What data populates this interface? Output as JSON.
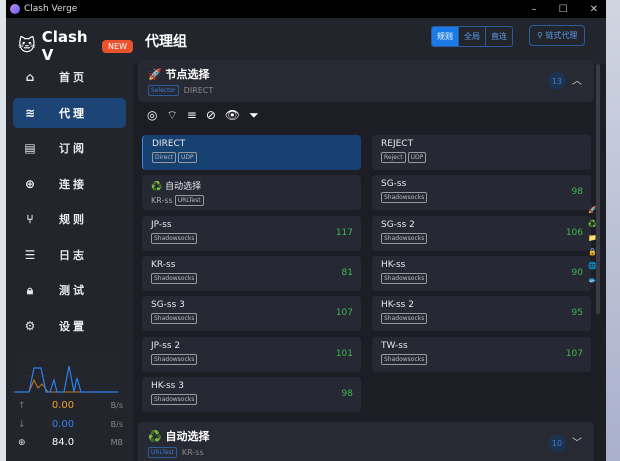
{
  "window": {
    "title": "Clash Verge"
  },
  "sidebar": {
    "app_name": "Clash V",
    "badge": "NEW",
    "items": [
      {
        "label": "首页",
        "icon": "home-icon"
      },
      {
        "label": "代理",
        "icon": "wifi-icon",
        "selected": true
      },
      {
        "label": "订阅",
        "icon": "storage-icon"
      },
      {
        "label": "连接",
        "icon": "globe-icon"
      },
      {
        "label": "规则",
        "icon": "fork-icon"
      },
      {
        "label": "日志",
        "icon": "list-icon"
      },
      {
        "label": "测试",
        "icon": "lock-icon"
      },
      {
        "label": "设置",
        "icon": "gear-icon"
      }
    ],
    "traffic": {
      "up": "0.00",
      "up_unit": "B/s",
      "down": "0.00",
      "down_unit": "B/s",
      "mem": "84.0",
      "mem_unit": "MB"
    }
  },
  "header": {
    "title": "代理组",
    "modes": [
      "规则",
      "全局",
      "直连"
    ],
    "active_mode": "规则",
    "chain": "链式代理"
  },
  "groups": [
    {
      "name": "节点选择",
      "icon": "rocket-icon",
      "type": "Selector",
      "now": "DIRECT",
      "count": "13",
      "expanded": true
    },
    {
      "name": "自动选择",
      "icon": "recycle-icon",
      "type": "URLTest",
      "now": "KR-ss",
      "count": "10",
      "expanded": false
    }
  ],
  "proxies": [
    {
      "name": "DIRECT",
      "tags": [
        "Direct",
        "UDP"
      ],
      "delay": "",
      "selected": true
    },
    {
      "name": "REJECT",
      "tags": [
        "Reject",
        "UDP"
      ],
      "delay": ""
    },
    {
      "name": "♻️ 自动选择",
      "sub": "KR-ss",
      "tags": [
        "URLTest"
      ],
      "delay": ""
    },
    {
      "name": "SG-ss",
      "tags": [
        "Shadowsocks"
      ],
      "delay": "98"
    },
    {
      "name": "JP-ss",
      "tags": [
        "Shadowsocks"
      ],
      "delay": "117"
    },
    {
      "name": "SG-ss 2",
      "tags": [
        "Shadowsocks"
      ],
      "delay": "106"
    },
    {
      "name": "KR-ss",
      "tags": [
        "Shadowsocks"
      ],
      "delay": "81"
    },
    {
      "name": "HK-ss",
      "tags": [
        "Shadowsocks"
      ],
      "delay": "90"
    },
    {
      "name": "SG-ss 3",
      "tags": [
        "Shadowsocks"
      ],
      "delay": "107"
    },
    {
      "name": "HK-ss 2",
      "tags": [
        "Shadowsocks"
      ],
      "delay": "95"
    },
    {
      "name": "JP-ss 2",
      "tags": [
        "Shadowsocks"
      ],
      "delay": "101"
    },
    {
      "name": "TW-ss",
      "tags": [
        "Shadowsocks"
      ],
      "delay": "107"
    },
    {
      "name": "HK-ss 3",
      "tags": [
        "Shadowsocks"
      ],
      "delay": "98"
    }
  ],
  "colors": {
    "accent": "#1a7ae8",
    "selected": "#164070",
    "delay": "#3fb950",
    "upload": "#f0a030",
    "download": "#2f80ed"
  }
}
